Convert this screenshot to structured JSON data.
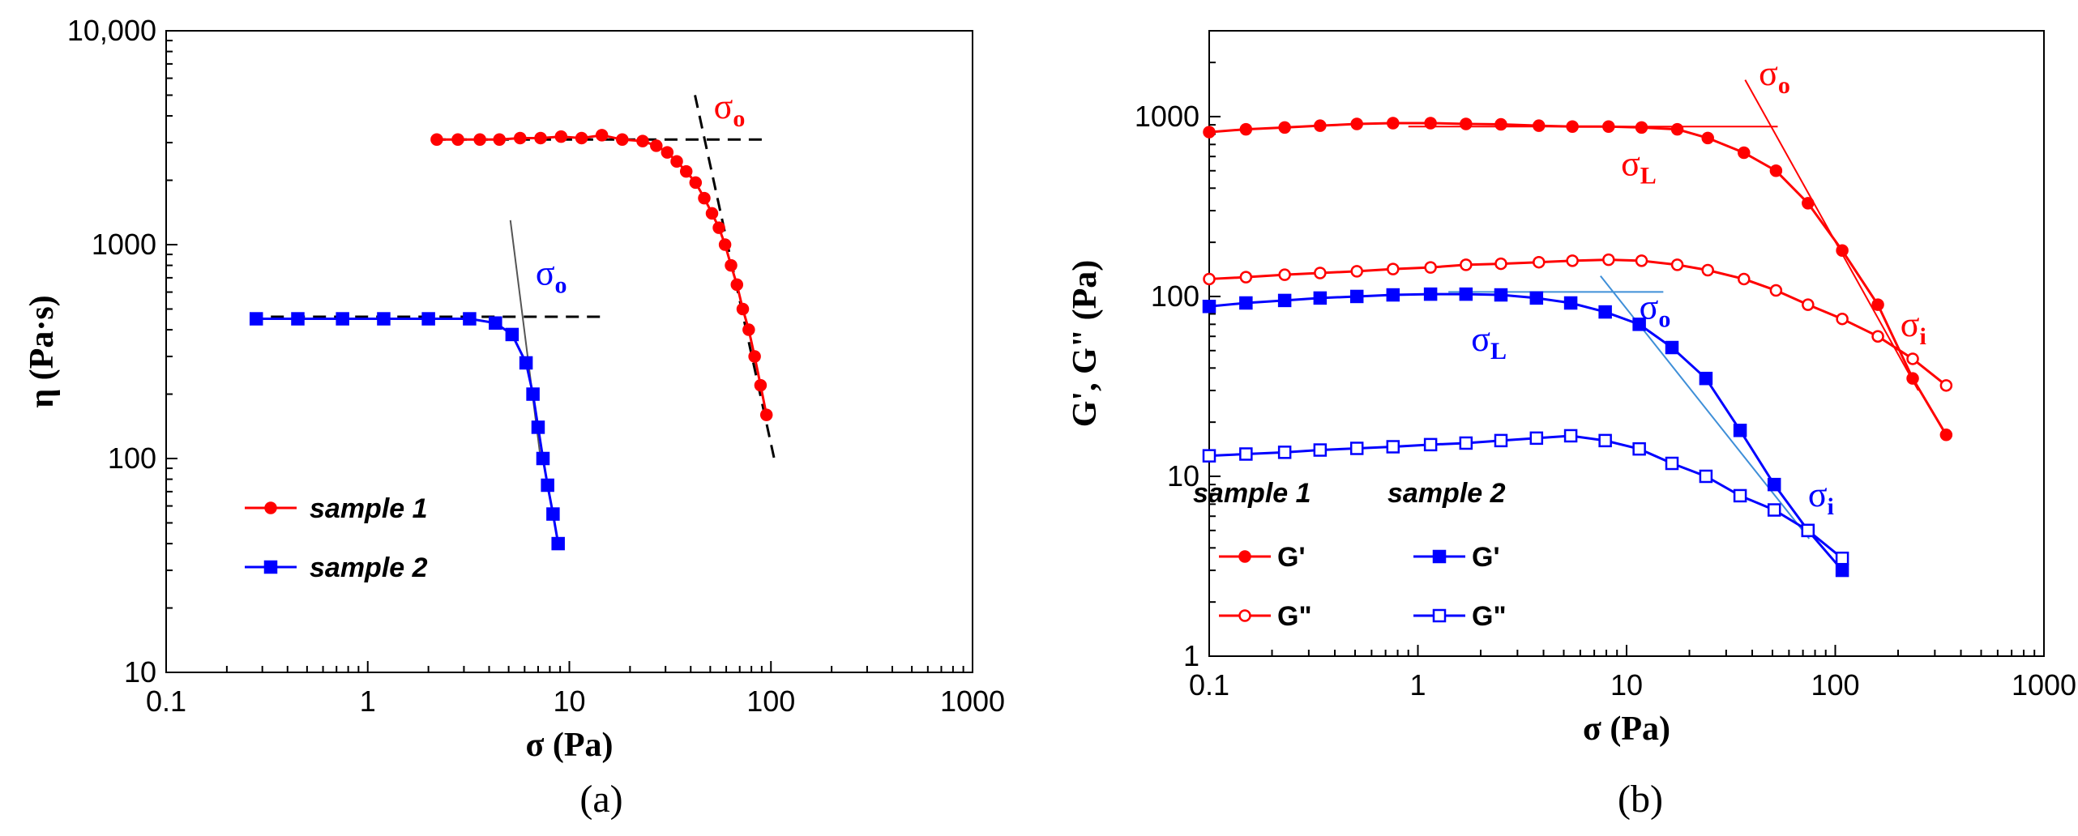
{
  "colors": {
    "red": "#ff0000",
    "blue": "#0000ff",
    "axis": "#000000",
    "guide": "#000000"
  },
  "chart_data": [
    {
      "id": "a",
      "type": "line",
      "scale": "log-log",
      "caption": "(a)",
      "xlabel": "σ  (Pa)",
      "ylabel": "η (Pa·s)",
      "xlim": [
        0.1,
        1000
      ],
      "ylim": [
        10,
        10000
      ],
      "xticks": [
        0.1,
        1,
        10,
        100,
        1000
      ],
      "xtick_labels": [
        "0.1",
        "1",
        "10",
        "100",
        "1000"
      ],
      "yticks": [
        10,
        100,
        1000,
        10000
      ],
      "ytick_labels": [
        "10",
        "100",
        "1000",
        "10,000"
      ],
      "series": [
        {
          "name": "sample 1",
          "color": "#ff0000",
          "marker": "circle",
          "filled": true,
          "x": [
            2.2,
            2.8,
            3.6,
            4.5,
            5.7,
            7.2,
            9.1,
            11.5,
            14.5,
            18.3,
            23.1,
            27.0,
            30.6,
            34.1,
            38.0,
            42.3,
            46.7,
            51.0,
            55.2,
            59.2,
            63.4,
            67.8,
            72.5,
            77.6,
            83.0,
            88.8,
            95.0
          ],
          "y": [
            3100,
            3100,
            3100,
            3100,
            3150,
            3150,
            3200,
            3150,
            3250,
            3100,
            3050,
            2900,
            2700,
            2450,
            2200,
            1950,
            1650,
            1400,
            1200,
            1000,
            800,
            650,
            500,
            400,
            300,
            220,
            160
          ]
        },
        {
          "name": "sample 2",
          "color": "#0000ff",
          "marker": "square",
          "filled": true,
          "x": [
            0.28,
            0.45,
            0.75,
            1.2,
            2.0,
            3.2,
            4.3,
            5.2,
            6.1,
            6.6,
            7.0,
            7.4,
            7.8,
            8.3,
            8.8
          ],
          "y": [
            450,
            450,
            450,
            450,
            450,
            450,
            430,
            380,
            280,
            200,
            140,
            100,
            75,
            55,
            40
          ]
        }
      ],
      "guides": [
        {
          "style": "dashed",
          "x": [
            2.1,
            95
          ],
          "y": [
            3100,
            3100
          ]
        },
        {
          "style": "dashed",
          "x": [
            42,
            105
          ],
          "y": [
            5000,
            95
          ]
        },
        {
          "style": "dashed",
          "x": [
            0.26,
            14.5
          ],
          "y": [
            460,
            460
          ]
        },
        {
          "style": "solid-thin",
          "x": [
            5.1,
            7.2
          ],
          "y": [
            1300,
            100
          ]
        }
      ],
      "legend": {
        "position": "bottom-left",
        "items": [
          "sample 1",
          "sample 2"
        ]
      },
      "annotations": [
        {
          "text": "σ",
          "sub": "o",
          "color": "#ff0000",
          "x": 52,
          "y": 3900
        },
        {
          "text": "σ",
          "sub": "o",
          "color": "#0000ff",
          "x": 6.8,
          "y": 650
        }
      ]
    },
    {
      "id": "b",
      "type": "line",
      "scale": "log-log",
      "caption": "(b)",
      "xlabel": "σ (Pa)",
      "ylabel": "G', G\" (Pa)",
      "xlim": [
        0.1,
        1000
      ],
      "ylim": [
        1,
        3000
      ],
      "xticks": [
        0.1,
        1,
        10,
        100,
        1000
      ],
      "xtick_labels": [
        "0.1",
        "1",
        "10",
        "100",
        "1000"
      ],
      "yticks": [
        1,
        10,
        100,
        1000
      ],
      "ytick_labels": [
        "1",
        "10",
        "100",
        "1000"
      ],
      "series": [
        {
          "name": "sample 1 G'",
          "group": "sample 1",
          "label": "G'",
          "color": "#ff0000",
          "marker": "circle",
          "filled": true,
          "x": [
            0.1,
            0.15,
            0.23,
            0.34,
            0.51,
            0.76,
            1.15,
            1.7,
            2.5,
            3.8,
            5.5,
            8.2,
            11.8,
            17.5,
            24.5,
            36.5,
            52,
            74,
            108,
            160,
            235,
            340
          ],
          "y": [
            820,
            850,
            870,
            890,
            910,
            920,
            920,
            910,
            905,
            890,
            880,
            880,
            870,
            850,
            760,
            630,
            500,
            330,
            180,
            90,
            35,
            17
          ]
        },
        {
          "name": "sample 1 G\"",
          "group": "sample 1",
          "label": "G\"",
          "color": "#ff0000",
          "marker": "circle",
          "filled": false,
          "x": [
            0.1,
            0.15,
            0.23,
            0.34,
            0.51,
            0.76,
            1.15,
            1.7,
            2.5,
            3.8,
            5.5,
            8.2,
            11.8,
            17.5,
            24.5,
            36.5,
            52,
            74,
            108,
            160,
            235,
            340
          ],
          "y": [
            125,
            128,
            132,
            135,
            138,
            142,
            145,
            150,
            152,
            155,
            158,
            160,
            158,
            150,
            140,
            125,
            108,
            90,
            75,
            60,
            45,
            32
          ]
        },
        {
          "name": "sample 2 G'",
          "group": "sample 2",
          "label": "G'",
          "color": "#0000ff",
          "marker": "square",
          "filled": true,
          "x": [
            0.1,
            0.15,
            0.23,
            0.34,
            0.51,
            0.76,
            1.15,
            1.7,
            2.5,
            3.7,
            5.4,
            7.9,
            11.5,
            16.5,
            24,
            35,
            51,
            74,
            108
          ],
          "y": [
            88,
            92,
            95,
            98,
            100,
            102,
            103,
            103,
            102,
            98,
            92,
            82,
            70,
            52,
            35,
            18,
            9,
            5,
            3
          ]
        },
        {
          "name": "sample 2 G\"",
          "group": "sample 2",
          "label": "G\"",
          "color": "#0000ff",
          "marker": "square",
          "filled": false,
          "x": [
            0.1,
            0.15,
            0.23,
            0.34,
            0.51,
            0.76,
            1.15,
            1.7,
            2.5,
            3.7,
            5.4,
            7.9,
            11.5,
            16.5,
            24,
            35,
            51,
            74,
            108
          ],
          "y": [
            13,
            13.3,
            13.6,
            14,
            14.3,
            14.6,
            15,
            15.3,
            15.8,
            16.3,
            16.8,
            15.8,
            14.2,
            11.8,
            10,
            7.8,
            6.5,
            5,
            3.5
          ]
        }
      ],
      "guides": [
        {
          "color": "#ff0000",
          "x": [
            0.9,
            53
          ],
          "y": [
            880,
            880
          ]
        },
        {
          "color": "#ff0000",
          "x": [
            37,
            250
          ],
          "y": [
            1600,
            30
          ]
        },
        {
          "color": "#3f8fd8",
          "x": [
            1.4,
            15
          ],
          "y": [
            106,
            106
          ]
        },
        {
          "color": "#3f8fd8",
          "x": [
            7.5,
            75
          ],
          "y": [
            130,
            4.5
          ]
        }
      ],
      "legend": {
        "position": "bottom-left",
        "headers": [
          "sample 1",
          "sample 2"
        ],
        "items": [
          "G'",
          "G\"",
          "G'",
          "G\""
        ]
      },
      "annotations": [
        {
          "text": "σ",
          "sub": "o",
          "color": "#ff0000",
          "x": 43,
          "y": 1500
        },
        {
          "text": "σ",
          "sub": "L",
          "color": "#ff0000",
          "x": 9.4,
          "y": 470
        },
        {
          "text": "σ",
          "sub": "i",
          "color": "#ff0000",
          "x": 205,
          "y": 60
        },
        {
          "text": "σ",
          "sub": "o",
          "color": "#0000ff",
          "x": 11.5,
          "y": 75
        },
        {
          "text": "σ",
          "sub": "L",
          "color": "#0000ff",
          "x": 1.8,
          "y": 50
        },
        {
          "text": "σ",
          "sub": "i",
          "color": "#0000ff",
          "x": 74,
          "y": 6.8
        }
      ]
    }
  ]
}
